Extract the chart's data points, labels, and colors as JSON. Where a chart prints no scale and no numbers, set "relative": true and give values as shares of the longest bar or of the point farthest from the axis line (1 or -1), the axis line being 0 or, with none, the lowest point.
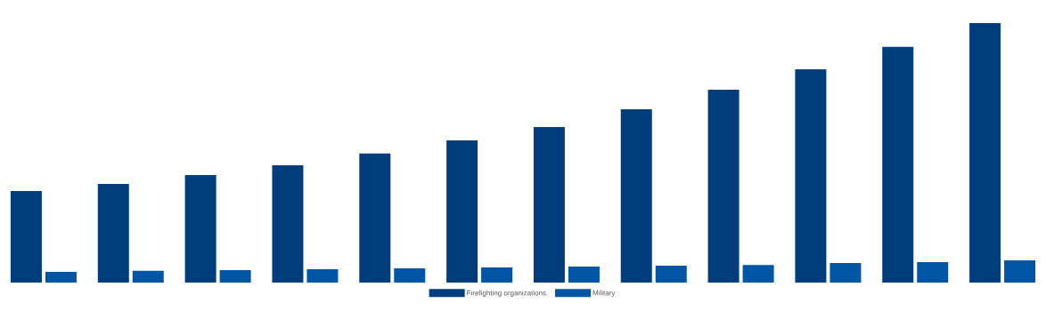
{
  "chart_data": {
    "type": "bar",
    "relative": true,
    "legend": "bottom",
    "categories": [
      null,
      null,
      null,
      null,
      null,
      null,
      null,
      null,
      null,
      null,
      null,
      null
    ],
    "series": [
      {
        "name": "Firefighting organizations",
        "color": "#003d7c",
        "values": [
          0.353,
          0.38,
          0.414,
          0.452,
          0.497,
          0.548,
          0.599,
          0.668,
          0.743,
          0.822,
          0.908,
          1
        ]
      },
      {
        "name": "Military",
        "color": "#0055a5",
        "values": [
          0.041,
          0.045,
          0.048,
          0.051,
          0.055,
          0.058,
          0.062,
          0.065,
          0.068,
          0.075,
          0.079,
          0.086
        ]
      }
    ]
  }
}
